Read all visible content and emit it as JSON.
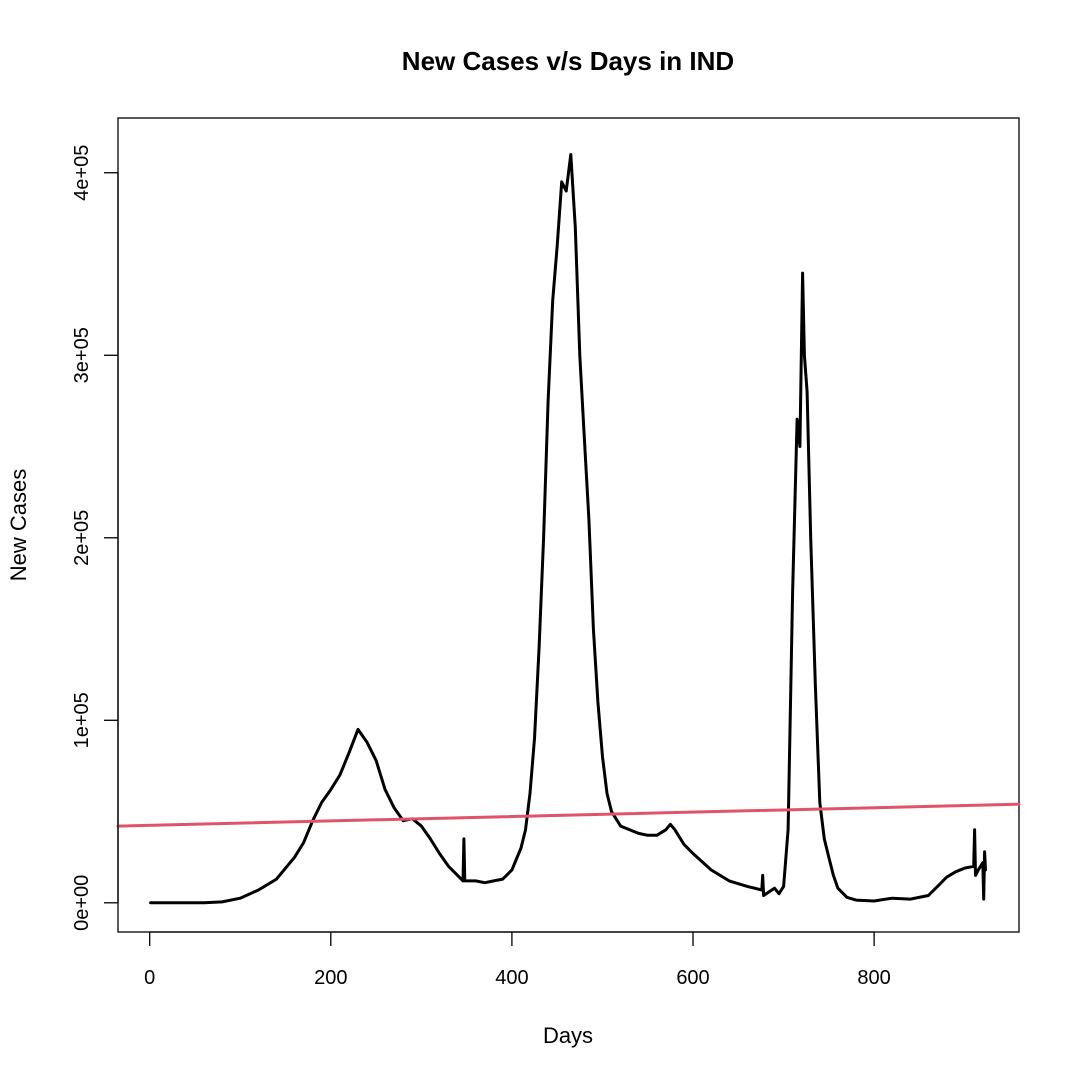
{
  "chart_data": {
    "type": "line",
    "title": "New Cases v/s Days in IND",
    "xlabel": "Days",
    "ylabel": "New Cases",
    "xlim": [
      -35,
      960
    ],
    "ylim": [
      -16000,
      430000
    ],
    "x_ticks": [
      0,
      200,
      400,
      600,
      800
    ],
    "x_tick_labels": [
      "0",
      "200",
      "400",
      "600",
      "800"
    ],
    "y_ticks": [
      0,
      100000,
      200000,
      300000,
      400000
    ],
    "y_tick_labels": [
      "0e+00",
      "1e+05",
      "2e+05",
      "3e+05",
      "4e+05"
    ],
    "grid": false,
    "legend": "none",
    "series": [
      {
        "style": "line",
        "color": "#000000",
        "x": [
          1,
          60,
          80,
          100,
          120,
          140,
          160,
          170,
          180,
          190,
          200,
          210,
          220,
          230,
          240,
          250,
          260,
          270,
          280,
          290,
          300,
          310,
          320,
          330,
          340,
          346,
          347,
          348,
          360,
          370,
          380,
          390,
          400,
          410,
          415,
          420,
          425,
          430,
          435,
          440,
          445,
          450,
          455,
          460,
          465,
          470,
          475,
          480,
          485,
          490,
          495,
          500,
          505,
          510,
          520,
          530,
          540,
          550,
          560,
          570,
          575,
          580,
          590,
          600,
          620,
          640,
          660,
          676,
          677,
          678,
          690,
          695,
          700,
          705,
          710,
          715,
          718,
          721,
          723,
          726,
          730,
          735,
          740,
          745,
          750,
          755,
          760,
          770,
          780,
          800,
          820,
          840,
          860,
          870,
          880,
          890,
          900,
          910,
          911,
          912,
          915,
          920,
          921,
          922,
          923
        ],
        "y": [
          0,
          0,
          500,
          2500,
          7000,
          13000,
          25000,
          33000,
          45000,
          55000,
          62000,
          70000,
          82000,
          95000,
          88000,
          78000,
          62000,
          52000,
          45000,
          46000,
          42000,
          35000,
          27000,
          20000,
          15000,
          12000,
          35000,
          12000,
          12000,
          11000,
          12000,
          13000,
          18000,
          30000,
          40000,
          60000,
          90000,
          140000,
          200000,
          275000,
          330000,
          360000,
          395000,
          390000,
          410000,
          370000,
          300000,
          255000,
          210000,
          150000,
          110000,
          80000,
          60000,
          50000,
          42000,
          40000,
          38000,
          37000,
          37000,
          40000,
          43000,
          40000,
          32000,
          27000,
          18000,
          12000,
          9000,
          7000,
          15000,
          4000,
          8000,
          5000,
          9000,
          40000,
          170000,
          265000,
          250000,
          345000,
          300000,
          280000,
          200000,
          120000,
          55000,
          35000,
          25000,
          15000,
          8000,
          3000,
          1500,
          1000,
          2500,
          2000,
          4000,
          9000,
          14000,
          17000,
          19000,
          20000,
          40000,
          15000,
          18000,
          22000,
          2000,
          28000,
          18000
        ]
      },
      {
        "style": "regression-line",
        "color": "#DF536B",
        "x": [
          -35,
          960
        ],
        "y": [
          42000,
          54000
        ]
      }
    ]
  }
}
